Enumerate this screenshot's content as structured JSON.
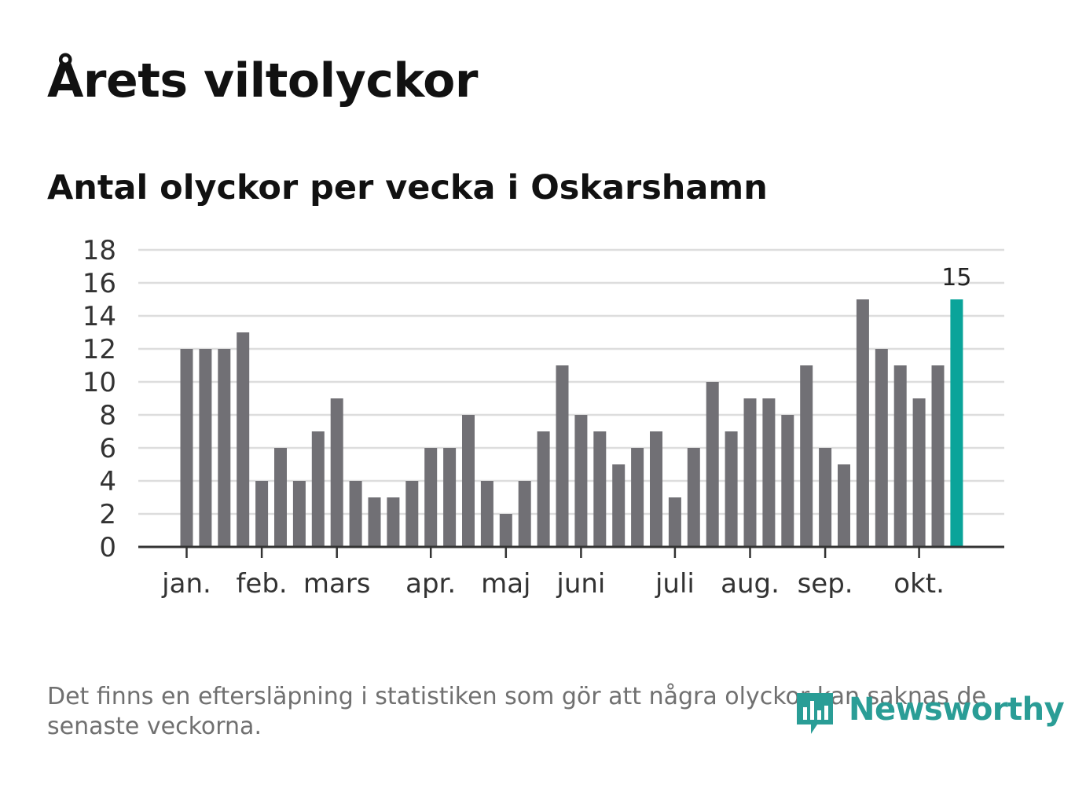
{
  "title": "Årets viltolyckor",
  "subtitle": "Antal olyckor per vecka i Oskarshamn",
  "note": "Det finns en eftersläpning i statistiken som gör att några olyckor kan saknas de senaste veckorna.",
  "brand": {
    "name": "Newsworthy",
    "color": "#2a9d96"
  },
  "colors": {
    "bar": "#717075",
    "highlight": "#0aa49a",
    "grid": "#dddddd",
    "axis": "#333333",
    "text": "#333333"
  },
  "chart_data": {
    "type": "bar",
    "title": "Antal olyckor per vecka i Oskarshamn",
    "xlabel": "",
    "ylabel": "",
    "ylim": [
      0,
      18
    ],
    "yticks": [
      0,
      2,
      4,
      6,
      8,
      10,
      12,
      14,
      16,
      18
    ],
    "grid": true,
    "values": [
      12,
      12,
      12,
      13,
      4,
      6,
      4,
      7,
      9,
      4,
      3,
      3,
      4,
      6,
      6,
      8,
      4,
      2,
      4,
      7,
      11,
      8,
      7,
      5,
      6,
      7,
      3,
      6,
      10,
      7,
      9,
      9,
      8,
      11,
      6,
      5,
      15,
      12,
      11,
      9,
      11,
      15
    ],
    "highlight_index": 41,
    "highlight_label": "15",
    "month_labels": [
      {
        "label": "jan.",
        "week_index": 0
      },
      {
        "label": "feb.",
        "week_index": 4
      },
      {
        "label": "mars",
        "week_index": 8
      },
      {
        "label": "apr.",
        "week_index": 13
      },
      {
        "label": "maj",
        "week_index": 17
      },
      {
        "label": "juni",
        "week_index": 21
      },
      {
        "label": "juli",
        "week_index": 26
      },
      {
        "label": "aug.",
        "week_index": 30
      },
      {
        "label": "sep.",
        "week_index": 34
      },
      {
        "label": "okt.",
        "week_index": 39
      }
    ]
  }
}
